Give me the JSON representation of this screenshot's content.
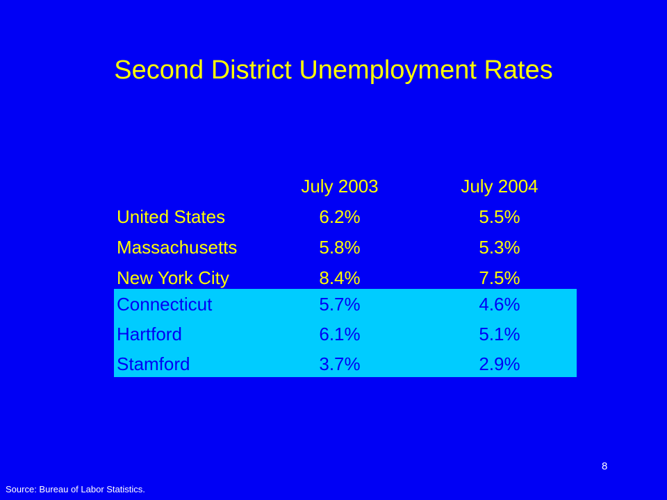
{
  "header": {
    "title": "Second District Unemployment Rates"
  },
  "table": {
    "columns": [
      "July 2003",
      "July 2004"
    ],
    "rows": [
      [
        "United States",
        "6.2%",
        "5.5%"
      ],
      [
        "Massachusetts",
        "5.8%",
        "5.3%"
      ],
      [
        "New York City",
        "8.4%",
        "7.5%"
      ],
      [
        "Connecticut",
        "5.7%",
        "4.6%"
      ],
      [
        "Hartford",
        "6.1%",
        "5.1%"
      ],
      [
        "Stamford",
        "3.7%",
        "2.9%"
      ]
    ]
  },
  "footer": {
    "source": "Source: Bureau of Labor Statistics.",
    "page_number": "8"
  }
}
